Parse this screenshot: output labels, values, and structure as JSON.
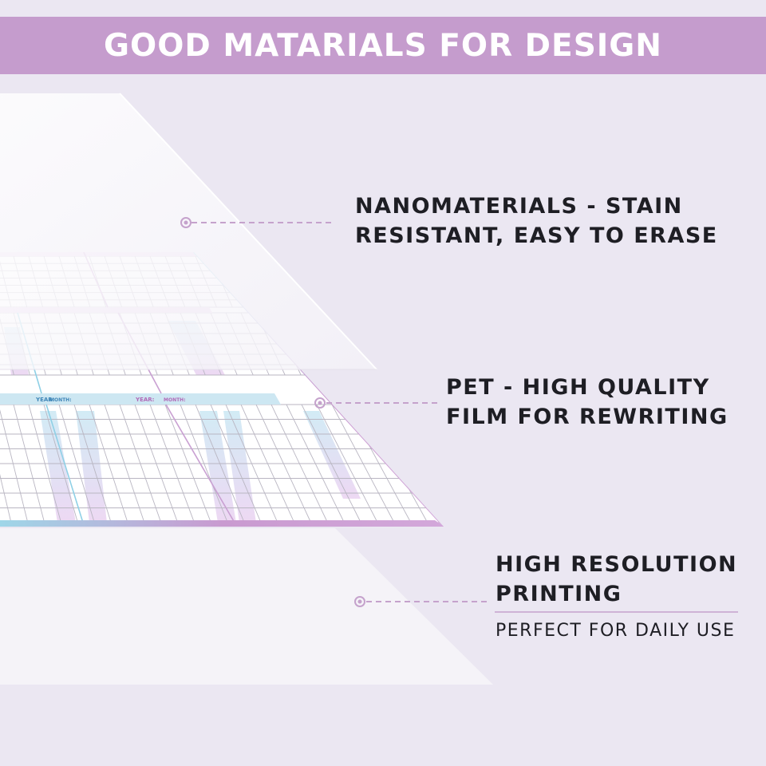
{
  "header": {
    "title": "GOOD MATARIALS FOR DESIGN"
  },
  "layers": [
    {
      "label_line1": "NANOMATERIALS - STAIN",
      "label_line2": "RESISTANT, EASY TO ERASE"
    },
    {
      "label_line1": "PET - HIGH QUALITY",
      "label_line2": "FILM FOR REWRITING"
    },
    {
      "label_line1": "HIGH RESOLUTION",
      "label_line2": "PRINTING",
      "sublabel": "PERFECT FOR DAILY USE"
    }
  ],
  "calendar": {
    "year_label": "YEAR:",
    "month_label": "MONTH:"
  },
  "colors": {
    "banner": "#c59ccd",
    "background": "#ebe7f2",
    "accent_purple": "#c08bc8",
    "accent_blue": "#8fd0e6",
    "leader_line": "#c5a2cc"
  }
}
